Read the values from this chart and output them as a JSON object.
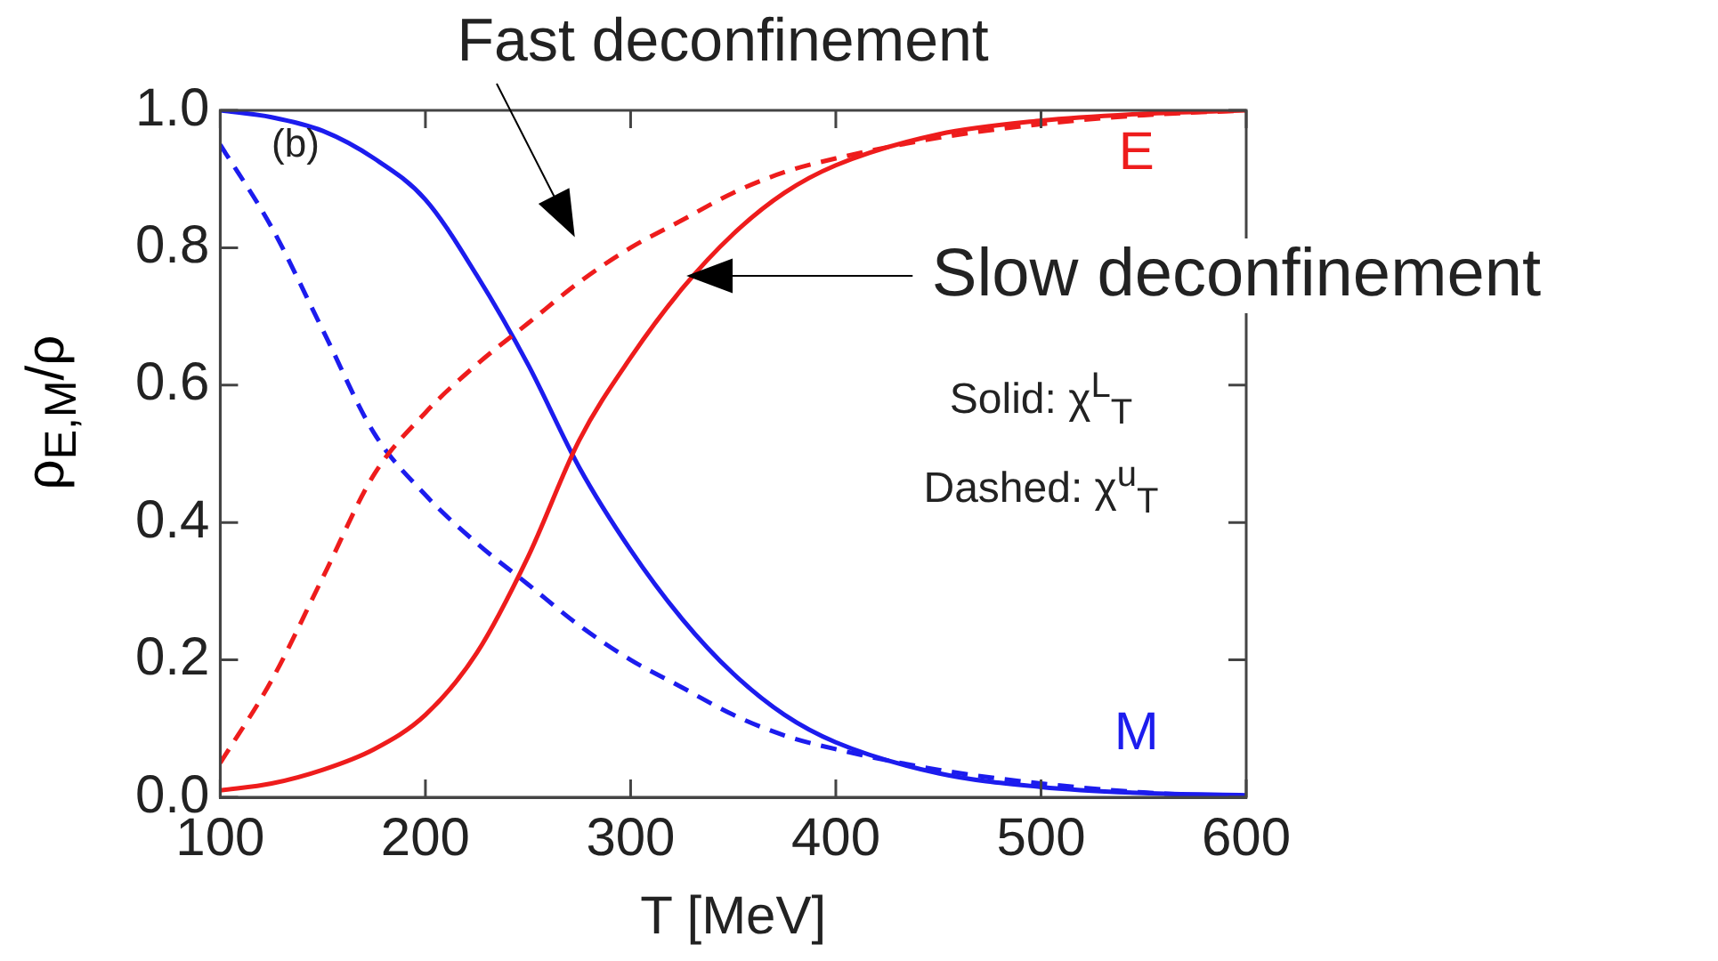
{
  "chart_data": {
    "type": "line",
    "xlabel": "T [MeV]",
    "ylabel": "ρ$_{E,M}$/ρ",
    "x": [
      100,
      125,
      150,
      175,
      200,
      225,
      250,
      275,
      300,
      325,
      350,
      375,
      400,
      450,
      500,
      550,
      600
    ],
    "xlim": [
      100,
      600
    ],
    "xticks": [
      100,
      200,
      300,
      400,
      500,
      600
    ],
    "ylim": [
      0,
      1
    ],
    "yticks": [
      {
        "value": 0,
        "label": "0.0"
      },
      {
        "value": 0.2,
        "label": "0.2"
      },
      {
        "value": 0.4,
        "label": "0.4"
      },
      {
        "value": 0.6,
        "label": "0.6"
      },
      {
        "value": 0.8,
        "label": "0.8"
      },
      {
        "value": 1,
        "label": "1.0"
      }
    ],
    "grid": false,
    "legend": false,
    "marker": "none",
    "series": [
      {
        "color": "#ee1c1c",
        "line_style": "solid",
        "values": [
          0.01,
          0.02,
          0.04,
          0.07,
          0.12,
          0.21,
          0.35,
          0.52,
          0.64,
          0.74,
          0.82,
          0.88,
          0.92,
          0.965,
          0.985,
          0.995,
          1.0
        ]
      },
      {
        "color": "#ee1c1c",
        "line_style": "dashed",
        "values": [
          0.05,
          0.17,
          0.32,
          0.47,
          0.56,
          0.63,
          0.69,
          0.75,
          0.8,
          0.84,
          0.88,
          0.91,
          0.93,
          0.96,
          0.98,
          0.993,
          1.0
        ]
      },
      {
        "color": "#1c1cee",
        "line_style": "solid",
        "values": [
          1.0,
          0.99,
          0.97,
          0.93,
          0.87,
          0.76,
          0.63,
          0.48,
          0.36,
          0.26,
          0.18,
          0.12,
          0.08,
          0.035,
          0.015,
          0.006,
          0.003
        ]
      },
      {
        "color": "#1c1cee",
        "line_style": "dashed",
        "values": [
          0.95,
          0.83,
          0.68,
          0.53,
          0.44,
          0.37,
          0.31,
          0.25,
          0.2,
          0.16,
          0.12,
          0.09,
          0.07,
          0.04,
          0.02,
          0.007,
          0.0
        ]
      }
    ],
    "annotations": [
      "Fast deconfinement",
      "Slow deconfinement",
      "E",
      "M",
      "(b)",
      "Solid: χ$^{L}$$_{T}$",
      "Dashed: χ$^{u}$$_{T}$"
    ]
  }
}
